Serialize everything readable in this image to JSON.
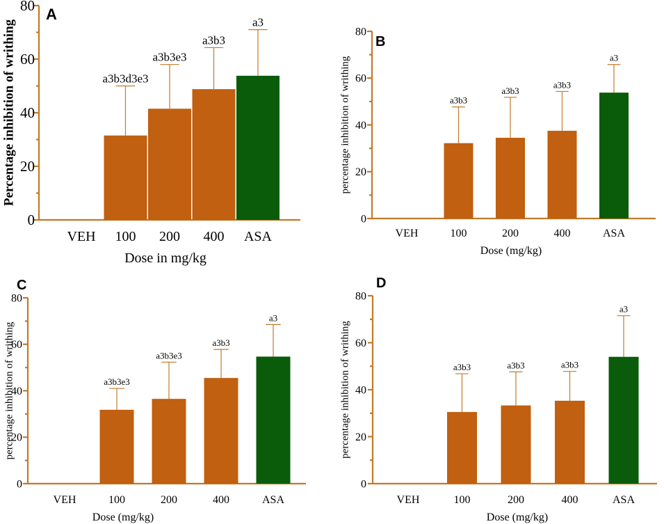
{
  "figure": "four-panel bar chart of percentage inhibition of writhing",
  "colors": {
    "axis": "#c07a28",
    "dose_bar": "#c06010",
    "asa_bar": "#0a5c0a",
    "error_bar": "#c07a28"
  },
  "chart_data": [
    {
      "panel": "A",
      "type": "bar",
      "title": "",
      "xlabel": "Dose in mg/kg",
      "ylabel": "Percentage inhibition of writhing",
      "ylim": [
        0,
        80
      ],
      "yticks": [
        "0",
        "20",
        "40",
        "60",
        "80"
      ],
      "categories": [
        "VEH",
        "100",
        "200",
        "400",
        "ASA"
      ],
      "values": [
        0,
        31.5,
        41.5,
        48.8,
        53.8
      ],
      "errors": [
        0,
        18.5,
        16.5,
        15.5,
        17.2
      ],
      "labels": [
        "",
        "a3b3d3e3",
        "a3b3e3",
        "a3b3",
        "a3"
      ]
    },
    {
      "panel": "B",
      "type": "bar",
      "title": "",
      "xlabel": "Dose (mg/kg)",
      "ylabel": "percentage inhibition of writhing",
      "ylim": [
        0,
        80
      ],
      "yticks": [
        "0",
        "20",
        "40",
        "60",
        "80"
      ],
      "categories": [
        "VEH",
        "100",
        "200",
        "400",
        "ASA"
      ],
      "values": [
        0,
        32.2,
        34.5,
        37.5,
        53.8
      ],
      "errors": [
        0,
        15.5,
        17.3,
        16.8,
        12.0
      ],
      "labels": [
        "",
        "a3b3",
        "a3b3",
        "a3b3",
        "a3"
      ]
    },
    {
      "panel": "C",
      "type": "bar",
      "title": "",
      "xlabel": "Dose (mg/kg)",
      "ylabel": "percentage inhibition of writhing",
      "ylim": [
        0,
        80
      ],
      "yticks": [
        "0",
        "20",
        "40",
        "60",
        "80"
      ],
      "categories": [
        "VEH",
        "100",
        "200",
        "400",
        "ASA"
      ],
      "values": [
        0,
        31.8,
        36.5,
        45.5,
        54.7
      ],
      "errors": [
        0,
        9.2,
        15.8,
        12.3,
        13.8
      ],
      "labels": [
        "",
        "a3b3e3",
        "a3b3e3",
        "a3b3",
        "a3"
      ]
    },
    {
      "panel": "D",
      "type": "bar",
      "title": "",
      "xlabel": "Dose (mg/kg)",
      "ylabel": "percentage inhibition of writhing",
      "ylim": [
        0,
        80
      ],
      "yticks": [
        "0",
        "20",
        "40",
        "60",
        "80"
      ],
      "categories": [
        "VEH",
        "100",
        "200",
        "400",
        "ASA"
      ],
      "values": [
        0,
        30.5,
        33.3,
        35.3,
        54.0
      ],
      "errors": [
        0,
        16.3,
        14.3,
        12.5,
        17.5
      ],
      "labels": [
        "",
        "a3b3",
        "a3b3",
        "a3b3",
        "a3"
      ]
    }
  ]
}
